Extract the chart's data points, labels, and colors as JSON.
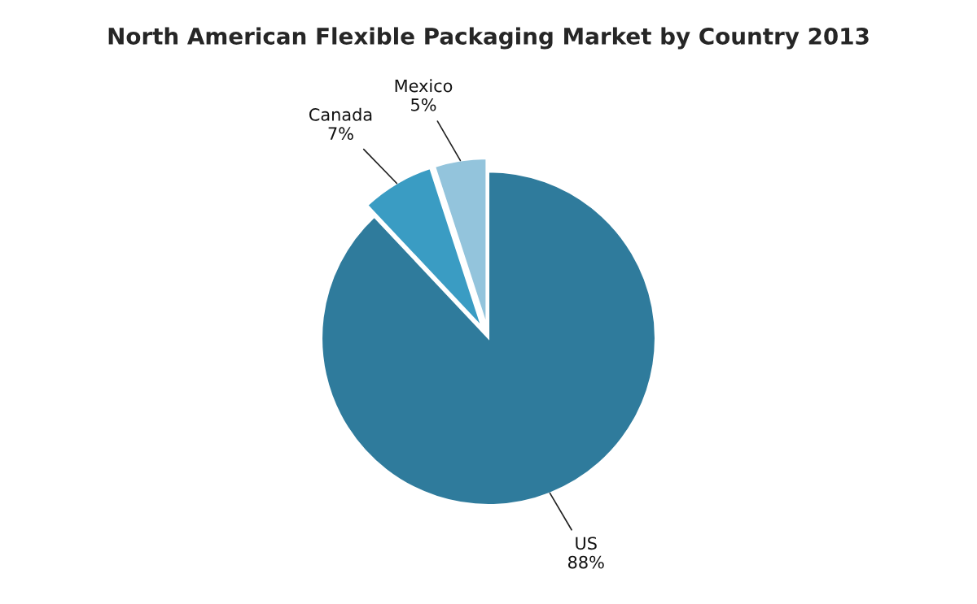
{
  "chart_data": {
    "type": "pie",
    "title": "North American Flexible Packaging Market by Country 2013",
    "categories": [
      "US",
      "Canada",
      "Mexico"
    ],
    "values": [
      88,
      7,
      5
    ],
    "value_labels": [
      "88%",
      "7%",
      "5%"
    ],
    "colors": [
      "#2f7b9c",
      "#3a9cc3",
      "#93c4dc"
    ],
    "legend": false
  }
}
